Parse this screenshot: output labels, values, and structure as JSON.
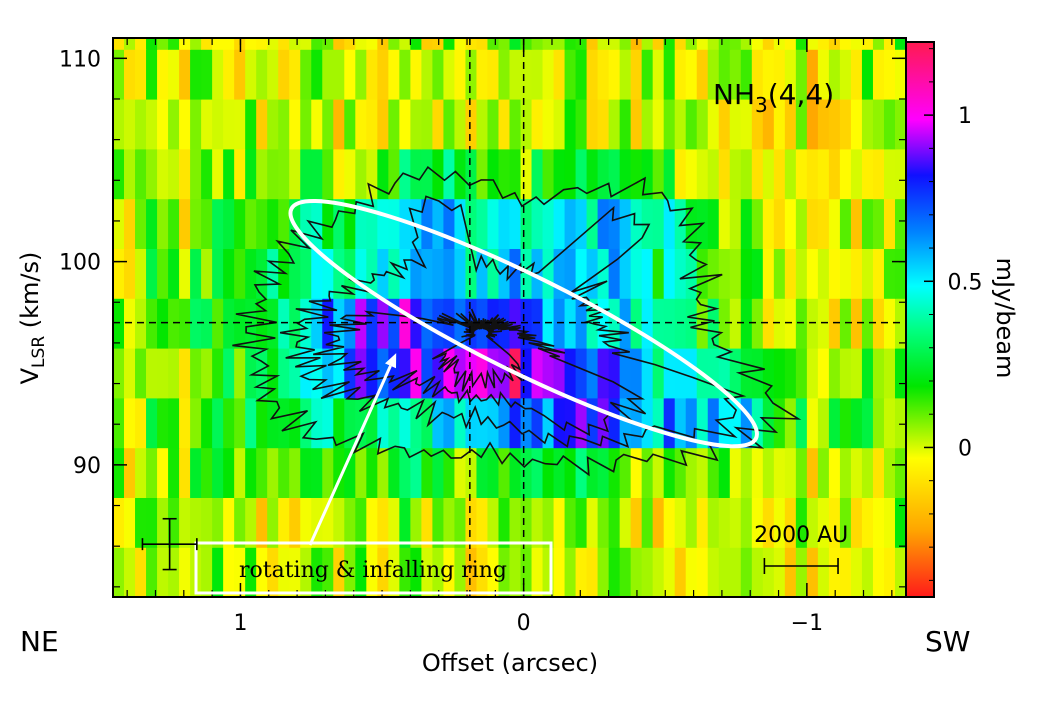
{
  "chart_data": {
    "type": "heatmap",
    "title": "",
    "line_label": {
      "main": "NH",
      "sub": "3",
      "rest": "(4,4)"
    },
    "xlabel": "Offset (arcsec)",
    "ylabel": {
      "main": "V",
      "sub": "LSR",
      "rest": " (km/s)"
    },
    "colorbar_label": "mJy/beam",
    "xlim": [
      1.45,
      -1.35
    ],
    "ylim": [
      83.5,
      111
    ],
    "colorbar_range": [
      -0.45,
      1.22
    ],
    "xticks": [
      {
        "value": 1,
        "label": "1"
      },
      {
        "value": 0,
        "label": "0"
      },
      {
        "value": -1,
        "label": "−1"
      }
    ],
    "yticks": [
      {
        "value": 90,
        "label": "90"
      },
      {
        "value": 100,
        "label": "100"
      },
      {
        "value": 110,
        "label": "110"
      }
    ],
    "colorbar_ticks": [
      {
        "value": 0,
        "label": "0"
      },
      {
        "value": 0.5,
        "label": "0.5"
      },
      {
        "value": 1,
        "label": "1"
      }
    ],
    "direction_labels": {
      "left": "NE",
      "right": "SW"
    },
    "reference_lines": {
      "vertical": [
        0.19,
        0.0
      ],
      "horizontal": [
        97
      ]
    },
    "ring_ellipse": {
      "x_range": [
        0.82,
        -0.82
      ],
      "v_range": [
        91.3,
        102.6
      ]
    },
    "annotation": {
      "text": "rotating & infalling ring",
      "arrow_to": {
        "x": 0.45,
        "v": 95.5
      }
    },
    "scale_bar": {
      "label": "2000 AU",
      "x_from": -0.85,
      "x_to": -1.11,
      "v": 88.2
    },
    "error_bar": {
      "x": 1.25,
      "v": 86.1,
      "dx": 0.06,
      "dv": 1.0
    },
    "emission_peaks": [
      {
        "x": 0.55,
        "v": 95.9,
        "amp": 0.45
      },
      {
        "x": 0.15,
        "v": 95.0,
        "amp": 0.55
      },
      {
        "x": -0.22,
        "v": 92.9,
        "amp": 0.5
      },
      {
        "x": -0.65,
        "v": 92.7,
        "amp": 0.45
      },
      {
        "x": 0.3,
        "v": 102.8,
        "amp": 0.3
      },
      {
        "x": -0.35,
        "v": 102.0,
        "amp": 0.28
      },
      {
        "x": -1.12,
        "v": 92.6,
        "amp": 0.2
      }
    ],
    "contour_levels": [
      0.25,
      0.5,
      0.75,
      1.0
    ]
  }
}
